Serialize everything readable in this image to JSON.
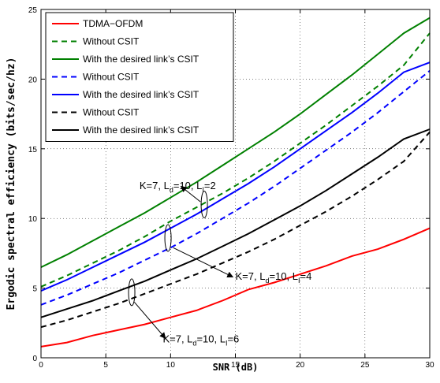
{
  "chart_data": {
    "type": "line",
    "title": "",
    "xlabel": "SNR (dB)",
    "ylabel": "Ergodic spectral efficiency (bits/sec/hz)",
    "xlim": [
      0,
      30
    ],
    "ylim": [
      0,
      25
    ],
    "x_ticks": [
      0,
      5,
      10,
      15,
      20,
      25,
      30
    ],
    "y_ticks": [
      0,
      5,
      10,
      15,
      20,
      25
    ],
    "grid": true,
    "legend_position": "top-left",
    "x": [
      0,
      2,
      4,
      6,
      8,
      10,
      12,
      14,
      16,
      18,
      20,
      22,
      24,
      26,
      28,
      30
    ],
    "series": [
      {
        "name": "TDMA−OFDM",
        "color": "#ff0000",
        "dash": "solid",
        "values": [
          0.8,
          1.1,
          1.6,
          2.0,
          2.4,
          2.9,
          3.4,
          4.1,
          4.9,
          5.4,
          6.0,
          6.6,
          7.3,
          7.8,
          8.5,
          9.3
        ]
      },
      {
        "name": "Without CSIT",
        "color": "#008000",
        "dash": "dashed",
        "values": [
          5.1,
          5.9,
          6.8,
          7.7,
          8.7,
          9.8,
          10.8,
          11.8,
          12.9,
          14.1,
          15.4,
          16.7,
          18.1,
          19.5,
          21.0,
          23.3
        ]
      },
      {
        "name": "With the desired link’s CSIT",
        "color": "#008000",
        "dash": "solid",
        "values": [
          6.5,
          7.4,
          8.4,
          9.4,
          10.4,
          11.5,
          12.6,
          13.8,
          15.0,
          16.2,
          17.5,
          18.9,
          20.3,
          21.8,
          23.3,
          24.4
        ]
      },
      {
        "name": "Without CSIT",
        "color": "#0000ff",
        "dash": "dashed",
        "values": [
          3.8,
          4.5,
          5.3,
          6.1,
          7.0,
          7.9,
          8.9,
          10.0,
          11.1,
          12.3,
          13.6,
          14.9,
          16.2,
          17.6,
          19.1,
          20.6
        ]
      },
      {
        "name": "With the desired link’s CSIT",
        "color": "#0000ff",
        "dash": "solid",
        "values": [
          4.8,
          5.6,
          6.5,
          7.4,
          8.3,
          9.3,
          10.3,
          11.4,
          12.5,
          13.7,
          15.0,
          16.3,
          17.6,
          19.0,
          20.5,
          21.2
        ]
      },
      {
        "name": "Without CSIT",
        "color": "#000000",
        "dash": "dashed",
        "values": [
          2.2,
          2.7,
          3.3,
          3.9,
          4.6,
          5.3,
          6.0,
          6.8,
          7.6,
          8.5,
          9.5,
          10.5,
          11.6,
          12.8,
          14.1,
          16.2
        ]
      },
      {
        "name": "With the desired link’s CSIT",
        "color": "#000000",
        "dash": "solid",
        "values": [
          2.9,
          3.5,
          4.1,
          4.8,
          5.5,
          6.3,
          7.1,
          8.0,
          8.9,
          9.9,
          10.9,
          12.0,
          13.2,
          14.4,
          15.7,
          16.4
        ]
      }
    ],
    "annotations": [
      {
        "text_main": "K=7, L",
        "sub1": "d",
        "mid": "=10, L",
        "sub2": "I",
        "tail": "=2",
        "label_at": [
          7.6,
          12.1
        ],
        "ellipse_at": [
          12.6,
          11.0
        ],
        "arrow_from": [
          12.3,
          11.2
        ],
        "arrow_to": [
          10.8,
          12.3
        ]
      },
      {
        "text_main": "K=7, L",
        "sub1": "d",
        "mid": "=10, L",
        "sub2": "I",
        "tail": "=4",
        "label_at": [
          15.0,
          5.6
        ],
        "ellipse_at": [
          9.8,
          8.6
        ],
        "arrow_from": [
          10.2,
          7.9
        ],
        "arrow_to": [
          14.8,
          5.8
        ]
      },
      {
        "text_main": "K=7, L",
        "sub1": "d",
        "mid": "=10, L",
        "sub2": "I",
        "tail": "=6",
        "label_at": [
          9.4,
          1.1
        ],
        "ellipse_at": [
          7.0,
          4.7
        ],
        "arrow_from": [
          7.2,
          4.0
        ],
        "arrow_to": [
          9.6,
          1.4
        ]
      }
    ]
  }
}
